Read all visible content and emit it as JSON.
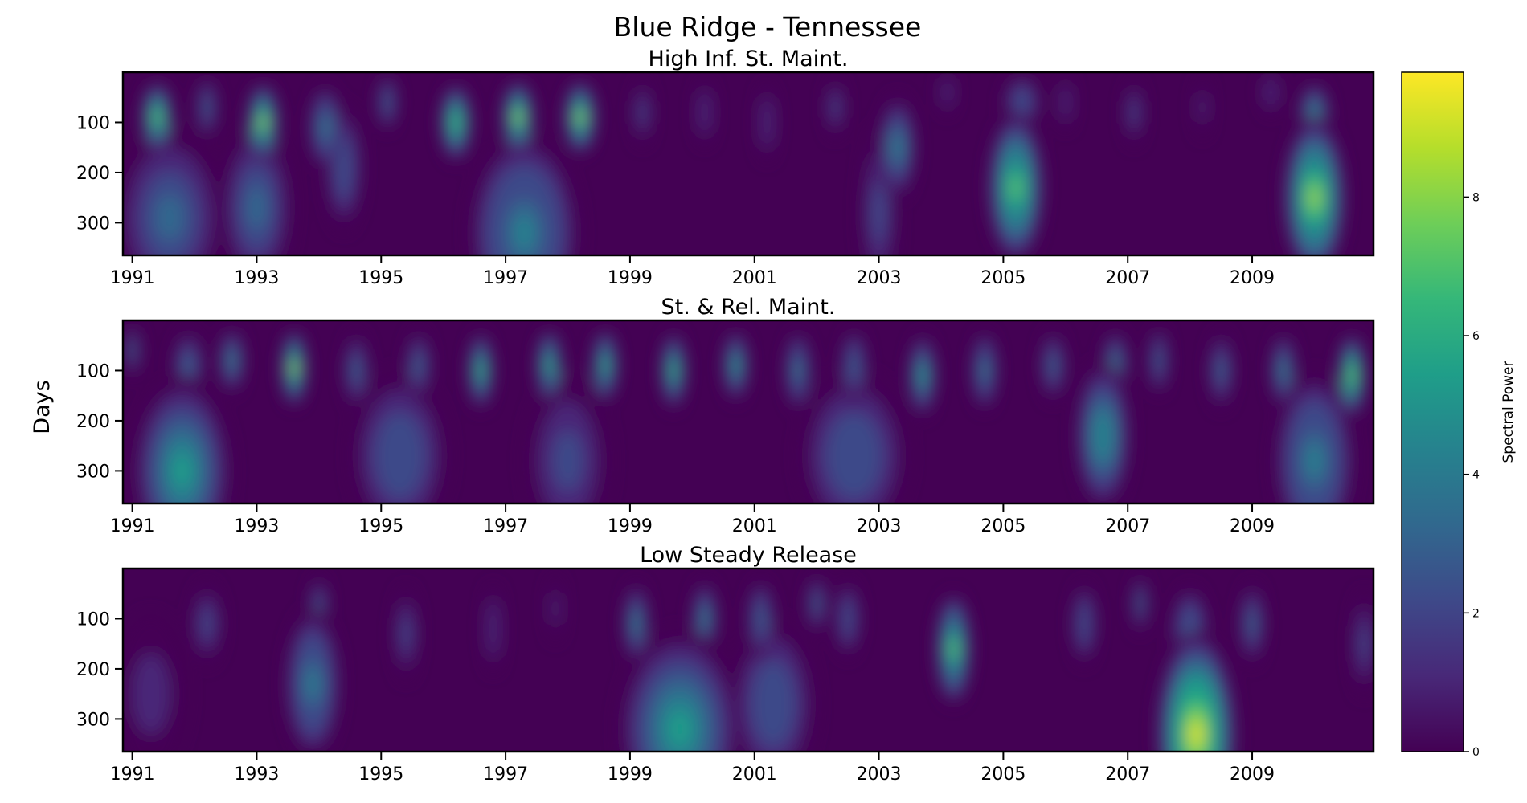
{
  "figure": {
    "title": "Blue Ridge - Tennessee",
    "ylabel": "Days"
  },
  "colorbar": {
    "label": "Spectral Power",
    "ticks": [
      "0",
      "2",
      "4",
      "6",
      "8"
    ],
    "range": [
      0,
      9.8
    ],
    "colormap": "viridis",
    "colors": [
      "#440154",
      "#482878",
      "#3e4989",
      "#31688e",
      "#26828e",
      "#1f9e89",
      "#35b779",
      "#6ece58",
      "#b5de2b",
      "#fde725"
    ]
  },
  "chart_data": [
    {
      "type": "heatmap",
      "title": "High Inf. St. Maint.",
      "xlabel": "",
      "ylabel": "Days",
      "xlim": [
        1990.85,
        2010.95
      ],
      "ylim": [
        365,
        0
      ],
      "xticks": [
        "1991",
        "1993",
        "1995",
        "1997",
        "1999",
        "2001",
        "2003",
        "2005",
        "2007",
        "2009"
      ],
      "yticks": [
        "100",
        "200",
        "300"
      ],
      "blobs": [
        {
          "year": 1991.4,
          "day": 90,
          "power": 7.2,
          "width": 0.25
        },
        {
          "year": 1991.6,
          "day": 290,
          "power": 3.0,
          "width": 0.9
        },
        {
          "year": 1992.2,
          "day": 70,
          "power": 3.5,
          "width": 0.15
        },
        {
          "year": 1993.1,
          "day": 100,
          "power": 8.5,
          "width": 0.25
        },
        {
          "year": 1993.0,
          "day": 270,
          "power": 3.2,
          "width": 0.6
        },
        {
          "year": 1994.1,
          "day": 110,
          "power": 4.5,
          "width": 0.25
        },
        {
          "year": 1994.4,
          "day": 190,
          "power": 2.5,
          "width": 0.3
        },
        {
          "year": 1995.1,
          "day": 60,
          "power": 3.5,
          "width": 0.15
        },
        {
          "year": 1996.2,
          "day": 100,
          "power": 7.0,
          "width": 0.25
        },
        {
          "year": 1997.2,
          "day": 90,
          "power": 8.5,
          "width": 0.25
        },
        {
          "year": 1998.2,
          "day": 90,
          "power": 8.5,
          "width": 0.25
        },
        {
          "year": 1997.3,
          "day": 320,
          "power": 4.5,
          "width": 0.9
        },
        {
          "year": 1999.2,
          "day": 80,
          "power": 2.0,
          "width": 0.15
        },
        {
          "year": 2000.2,
          "day": 80,
          "power": 1.5,
          "width": 0.15
        },
        {
          "year": 2001.2,
          "day": 100,
          "power": 1.5,
          "width": 0.15
        },
        {
          "year": 2002.3,
          "day": 70,
          "power": 1.8,
          "width": 0.15
        },
        {
          "year": 2003.3,
          "day": 150,
          "power": 4.2,
          "width": 0.3
        },
        {
          "year": 2003.0,
          "day": 280,
          "power": 2.0,
          "width": 0.3
        },
        {
          "year": 2004.1,
          "day": 40,
          "power": 1.5,
          "width": 0.12
        },
        {
          "year": 2005.2,
          "day": 230,
          "power": 7.8,
          "width": 0.45
        },
        {
          "year": 2005.3,
          "day": 60,
          "power": 2.5,
          "width": 0.3
        },
        {
          "year": 2006.0,
          "day": 60,
          "power": 1.5,
          "width": 0.12
        },
        {
          "year": 2007.1,
          "day": 80,
          "power": 1.8,
          "width": 0.15
        },
        {
          "year": 2008.2,
          "day": 70,
          "power": 1.4,
          "width": 0.12
        },
        {
          "year": 2009.3,
          "day": 40,
          "power": 1.6,
          "width": 0.15
        },
        {
          "year": 2010.0,
          "day": 250,
          "power": 8.8,
          "width": 0.5
        },
        {
          "year": 2010.0,
          "day": 90,
          "power": 5.0,
          "width": 0.25
        }
      ]
    },
    {
      "type": "heatmap",
      "title": "St. & Rel. Maint.",
      "xlabel": "",
      "ylabel": "Days",
      "xlim": [
        1990.85,
        2010.95
      ],
      "ylim": [
        365,
        0
      ],
      "xticks": [
        "1991",
        "1993",
        "1995",
        "1997",
        "1999",
        "2001",
        "2003",
        "2005",
        "2007",
        "2009"
      ],
      "yticks": [
        "100",
        "200",
        "300"
      ],
      "blobs": [
        {
          "year": 1991.0,
          "day": 60,
          "power": 3.0,
          "width": 0.12
        },
        {
          "year": 1991.8,
          "day": 300,
          "power": 5.0,
          "width": 0.8
        },
        {
          "year": 1991.9,
          "day": 90,
          "power": 3.0,
          "width": 0.25
        },
        {
          "year": 1992.6,
          "day": 80,
          "power": 4.0,
          "width": 0.2
        },
        {
          "year": 1993.6,
          "day": 95,
          "power": 8.5,
          "width": 0.2
        },
        {
          "year": 1994.6,
          "day": 100,
          "power": 3.0,
          "width": 0.2
        },
        {
          "year": 1995.3,
          "day": 270,
          "power": 2.5,
          "width": 0.8
        },
        {
          "year": 1995.6,
          "day": 90,
          "power": 3.0,
          "width": 0.2
        },
        {
          "year": 1996.6,
          "day": 100,
          "power": 6.0,
          "width": 0.2
        },
        {
          "year": 1997.7,
          "day": 90,
          "power": 6.5,
          "width": 0.2
        },
        {
          "year": 1998.6,
          "day": 90,
          "power": 6.5,
          "width": 0.2
        },
        {
          "year": 1998.0,
          "day": 280,
          "power": 1.8,
          "width": 0.7
        },
        {
          "year": 1999.7,
          "day": 100,
          "power": 6.0,
          "width": 0.2
        },
        {
          "year": 2000.7,
          "day": 90,
          "power": 5.0,
          "width": 0.2
        },
        {
          "year": 2001.7,
          "day": 100,
          "power": 4.5,
          "width": 0.2
        },
        {
          "year": 2002.6,
          "day": 270,
          "power": 2.5,
          "width": 0.9
        },
        {
          "year": 2002.6,
          "day": 90,
          "power": 3.5,
          "width": 0.2
        },
        {
          "year": 2003.7,
          "day": 110,
          "power": 5.0,
          "width": 0.22
        },
        {
          "year": 2004.7,
          "day": 100,
          "power": 4.5,
          "width": 0.2
        },
        {
          "year": 2005.8,
          "day": 90,
          "power": 3.0,
          "width": 0.2
        },
        {
          "year": 2006.6,
          "day": 230,
          "power": 4.8,
          "width": 0.45
        },
        {
          "year": 2006.8,
          "day": 90,
          "power": 4.0,
          "width": 0.2
        },
        {
          "year": 2007.5,
          "day": 80,
          "power": 3.5,
          "width": 0.15
        },
        {
          "year": 2008.5,
          "day": 100,
          "power": 3.0,
          "width": 0.2
        },
        {
          "year": 2009.5,
          "day": 100,
          "power": 4.0,
          "width": 0.2
        },
        {
          "year": 2010.0,
          "day": 280,
          "power": 4.5,
          "width": 0.65
        },
        {
          "year": 2010.6,
          "day": 110,
          "power": 8.0,
          "width": 0.22
        }
      ]
    },
    {
      "type": "heatmap",
      "title": "Low Steady Release",
      "xlabel": "",
      "ylabel": "Days",
      "xlim": [
        1990.85,
        2010.95
      ],
      "ylim": [
        365,
        0
      ],
      "xticks": [
        "1991",
        "1993",
        "1995",
        "1997",
        "1999",
        "2001",
        "2003",
        "2005",
        "2007",
        "2009"
      ],
      "yticks": [
        "100",
        "200",
        "300"
      ],
      "blobs": [
        {
          "year": 1991.3,
          "day": 250,
          "power": 1.4,
          "width": 0.6
        },
        {
          "year": 1992.2,
          "day": 110,
          "power": 2.0,
          "width": 0.25
        },
        {
          "year": 1993.9,
          "day": 230,
          "power": 4.5,
          "width": 0.45
        },
        {
          "year": 1994.0,
          "day": 80,
          "power": 3.0,
          "width": 0.15
        },
        {
          "year": 1995.4,
          "day": 130,
          "power": 1.8,
          "width": 0.2
        },
        {
          "year": 1996.8,
          "day": 120,
          "power": 1.5,
          "width": 0.15
        },
        {
          "year": 1997.8,
          "day": 80,
          "power": 1.4,
          "width": 0.12
        },
        {
          "year": 1999.8,
          "day": 320,
          "power": 5.2,
          "width": 1.0
        },
        {
          "year": 1999.1,
          "day": 110,
          "power": 4.0,
          "width": 0.2
        },
        {
          "year": 2000.2,
          "day": 100,
          "power": 4.0,
          "width": 0.2
        },
        {
          "year": 2001.1,
          "day": 100,
          "power": 3.5,
          "width": 0.2
        },
        {
          "year": 2001.3,
          "day": 270,
          "power": 2.5,
          "width": 0.7
        },
        {
          "year": 2002.0,
          "day": 70,
          "power": 3.0,
          "width": 0.15
        },
        {
          "year": 2002.5,
          "day": 100,
          "power": 2.5,
          "width": 0.2
        },
        {
          "year": 2004.2,
          "day": 160,
          "power": 7.5,
          "width": 0.28
        },
        {
          "year": 2006.3,
          "day": 110,
          "power": 2.5,
          "width": 0.2
        },
        {
          "year": 2007.2,
          "day": 70,
          "power": 3.0,
          "width": 0.12
        },
        {
          "year": 2008.1,
          "day": 330,
          "power": 9.8,
          "width": 0.65
        },
        {
          "year": 2008.0,
          "day": 130,
          "power": 3.5,
          "width": 0.3
        },
        {
          "year": 2009.0,
          "day": 110,
          "power": 3.0,
          "width": 0.2
        },
        {
          "year": 2010.8,
          "day": 150,
          "power": 2.0,
          "width": 0.2
        }
      ]
    }
  ]
}
